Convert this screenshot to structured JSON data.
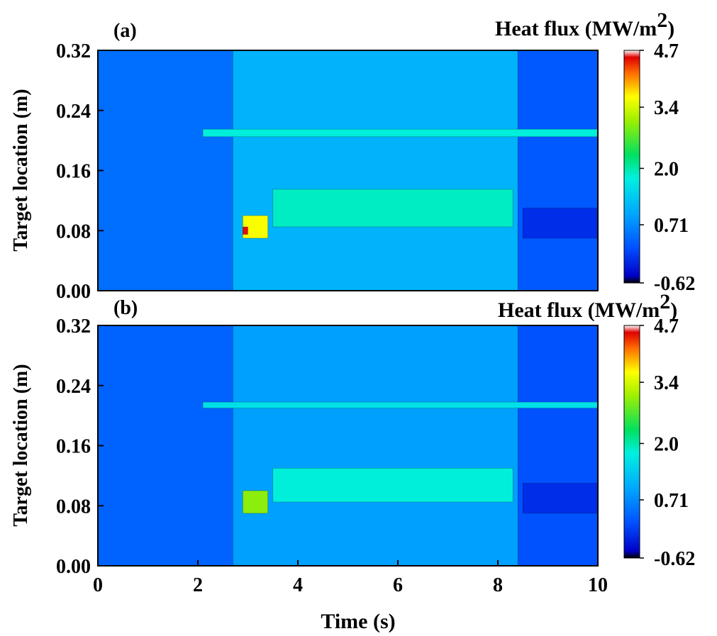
{
  "chart_data": [
    {
      "type": "heatmap",
      "panel_label": "(a)",
      "colorbar_title": "Heat flux (MW/m",
      "colorbar_title_sup": "2",
      "colorbar_title_close": ")",
      "ylabel": "Target location (m)",
      "xlabel": "",
      "xlim": [
        0,
        10
      ],
      "ylim": [
        0.0,
        0.32
      ],
      "yticks": [
        "0.00",
        "0.08",
        "0.16",
        "0.24",
        "0.32"
      ],
      "xticks": [],
      "colorbar_range": [
        -0.62,
        4.7
      ],
      "colorbar_ticks": [
        "4.7",
        "3.4",
        "2.0",
        "0.71",
        "-0.62"
      ],
      "regions": [
        {
          "t": [
            0,
            2.7
          ],
          "y": [
            0,
            0.32
          ],
          "value": 0.45
        },
        {
          "t": [
            2.7,
            8.4
          ],
          "y": [
            0,
            0.32
          ],
          "value": 1.1
        },
        {
          "t": [
            8.4,
            10
          ],
          "y": [
            0,
            0.32
          ],
          "value": 0.25
        },
        {
          "t": [
            3.5,
            8.3
          ],
          "y": [
            0.085,
            0.135
          ],
          "value": 1.9
        },
        {
          "t": [
            2.9,
            3.4
          ],
          "y": [
            0.07,
            0.1
          ],
          "value": 3.6
        },
        {
          "t": [
            2.9,
            3.0
          ],
          "y": [
            0.075,
            0.085
          ],
          "value": 4.5
        },
        {
          "t": [
            2.1,
            10
          ],
          "y": [
            0.205,
            0.215
          ],
          "value": 1.8
        },
        {
          "t": [
            8.5,
            10
          ],
          "y": [
            0.07,
            0.11
          ],
          "value": -0.1
        }
      ]
    },
    {
      "type": "heatmap",
      "panel_label": "(b)",
      "colorbar_title": "Heat flux (MW/m",
      "colorbar_title_sup": "2",
      "colorbar_title_close": ")",
      "ylabel": "Target location (m)",
      "xlabel": "Time (s)",
      "xlim": [
        0,
        10
      ],
      "ylim": [
        0.0,
        0.32
      ],
      "yticks": [
        "0.00",
        "0.08",
        "0.16",
        "0.24",
        "0.32"
      ],
      "xticks": [
        "0",
        "2",
        "4",
        "6",
        "8",
        "10"
      ],
      "colorbar_range": [
        -0.62,
        4.7
      ],
      "colorbar_ticks": [
        "4.7",
        "3.4",
        "2.0",
        "0.71",
        "-0.62"
      ],
      "regions": [
        {
          "t": [
            0,
            2.7
          ],
          "y": [
            0,
            0.32
          ],
          "value": 0.35
        },
        {
          "t": [
            2.7,
            8.4
          ],
          "y": [
            0,
            0.32
          ],
          "value": 0.9
        },
        {
          "t": [
            8.4,
            10
          ],
          "y": [
            0,
            0.32
          ],
          "value": 0.2
        },
        {
          "t": [
            3.5,
            8.3
          ],
          "y": [
            0.085,
            0.13
          ],
          "value": 1.8
        },
        {
          "t": [
            2.9,
            3.4
          ],
          "y": [
            0.07,
            0.1
          ],
          "value": 3.0
        },
        {
          "t": [
            2.1,
            10
          ],
          "y": [
            0.21,
            0.218
          ],
          "value": 1.6
        },
        {
          "t": [
            8.5,
            10
          ],
          "y": [
            0.07,
            0.11
          ],
          "value": -0.1
        }
      ]
    }
  ]
}
